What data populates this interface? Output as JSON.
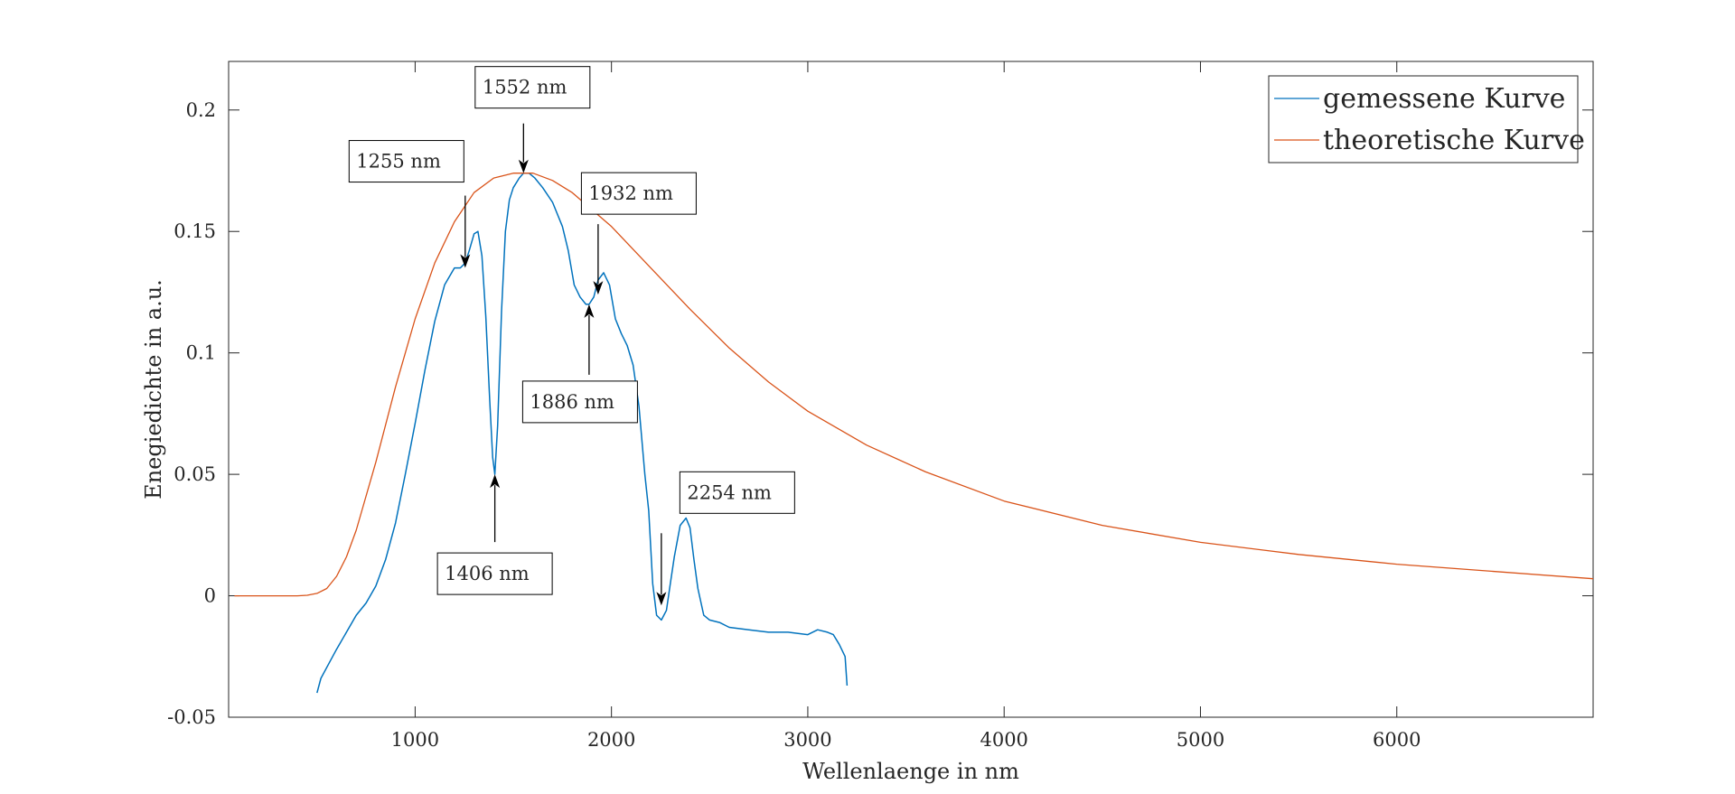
{
  "chart_data": {
    "type": "line",
    "title": "",
    "xlabel": "Wellenlaenge in nm",
    "ylabel": "Enegiedichte in a.u.",
    "xlim": [
      50,
      7000
    ],
    "ylim": [
      -0.05,
      0.22
    ],
    "xticks": [
      1000,
      2000,
      3000,
      4000,
      5000,
      6000
    ],
    "xtick_labels": [
      "1000",
      "2000",
      "3000",
      "4000",
      "5000",
      "6000"
    ],
    "yticks": [
      -0.05,
      0,
      0.05,
      0.1,
      0.15,
      0.2
    ],
    "ytick_labels": [
      "-0.05",
      "0",
      "0.05",
      "0.1",
      "0.15",
      "0.2"
    ],
    "grid": false,
    "legend": {
      "placement": "top-right"
    },
    "series": [
      {
        "name": "gemessene Kurve",
        "color": "#0072BD",
        "x": [
          500,
          520,
          560,
          600,
          650,
          700,
          750,
          800,
          850,
          900,
          950,
          1000,
          1050,
          1100,
          1150,
          1200,
          1230,
          1255,
          1275,
          1300,
          1320,
          1340,
          1360,
          1380,
          1395,
          1406,
          1420,
          1440,
          1460,
          1480,
          1500,
          1530,
          1552,
          1580,
          1610,
          1650,
          1700,
          1750,
          1780,
          1810,
          1840,
          1870,
          1886,
          1910,
          1932,
          1960,
          1990,
          2020,
          2050,
          2080,
          2110,
          2140,
          2170,
          2190,
          2200,
          2210,
          2230,
          2254,
          2280,
          2300,
          2320,
          2350,
          2380,
          2400,
          2420,
          2440,
          2470,
          2500,
          2550,
          2600,
          2700,
          2800,
          2900,
          3000,
          3050,
          3100,
          3130,
          3160,
          3190,
          3200
        ],
        "y": [
          -0.04,
          -0.034,
          -0.028,
          -0.022,
          -0.015,
          -0.008,
          -0.003,
          0.004,
          0.015,
          0.03,
          0.05,
          0.071,
          0.093,
          0.113,
          0.128,
          0.135,
          0.135,
          0.137,
          0.142,
          0.149,
          0.15,
          0.14,
          0.115,
          0.08,
          0.057,
          0.05,
          0.07,
          0.117,
          0.15,
          0.163,
          0.168,
          0.172,
          0.174,
          0.174,
          0.172,
          0.168,
          0.162,
          0.152,
          0.142,
          0.128,
          0.123,
          0.12,
          0.12,
          0.123,
          0.13,
          0.133,
          0.128,
          0.114,
          0.108,
          0.103,
          0.095,
          0.078,
          0.05,
          0.035,
          0.02,
          0.005,
          -0.008,
          -0.01,
          -0.006,
          0.005,
          0.016,
          0.029,
          0.032,
          0.028,
          0.015,
          0.003,
          -0.008,
          -0.01,
          -0.011,
          -0.013,
          -0.014,
          -0.015,
          -0.015,
          -0.016,
          -0.014,
          -0.015,
          -0.016,
          -0.02,
          -0.025,
          -0.037
        ]
      },
      {
        "name": "theoretische Kurve",
        "color": "#D95319",
        "x": [
          80,
          300,
          400,
          450,
          500,
          550,
          600,
          650,
          700,
          800,
          900,
          1000,
          1100,
          1200,
          1300,
          1400,
          1500,
          1552,
          1600,
          1700,
          1800,
          1900,
          2000,
          2200,
          2400,
          2600,
          2800,
          3000,
          3300,
          3600,
          4000,
          4500,
          5000,
          5500,
          6000,
          6500,
          7000
        ],
        "y": [
          0,
          0,
          0,
          0.0002,
          0.001,
          0.003,
          0.008,
          0.016,
          0.027,
          0.055,
          0.086,
          0.114,
          0.137,
          0.154,
          0.166,
          0.172,
          0.174,
          0.174,
          0.174,
          0.171,
          0.166,
          0.159,
          0.152,
          0.135,
          0.118,
          0.102,
          0.088,
          0.076,
          0.062,
          0.051,
          0.039,
          0.029,
          0.022,
          0.017,
          0.013,
          0.01,
          0.007
        ]
      }
    ],
    "annotations": [
      {
        "text": "1255 nm",
        "x": 1255,
        "y": 0.135
      },
      {
        "text": "1406 nm",
        "x": 1406,
        "y": 0.05
      },
      {
        "text": "1552 nm",
        "x": 1552,
        "y": 0.174
      },
      {
        "text": "1886 nm",
        "x": 1886,
        "y": 0.12
      },
      {
        "text": "1932 nm",
        "x": 1932,
        "y": 0.124
      },
      {
        "text": "2254 nm",
        "x": 2254,
        "y": -0.004
      }
    ]
  }
}
